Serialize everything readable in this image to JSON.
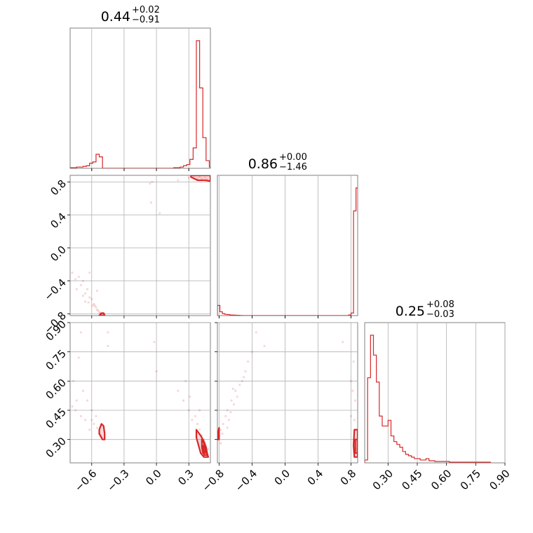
{
  "chart_data": {
    "type": "corner",
    "color": "#d62728",
    "grid": true,
    "parameters": [
      {
        "range": [
          -0.8,
          0.5
        ],
        "ticks": [
          -0.6,
          -0.3,
          0.0,
          0.3
        ],
        "tick_labels": [
          "−0.6",
          "−0.3",
          "0.0",
          "0.3"
        ]
      },
      {
        "range": [
          -0.82,
          0.88
        ],
        "ticks": [
          -0.8,
          -0.4,
          0.0,
          0.4,
          0.8
        ],
        "tick_labels": [
          "−0.8",
          "−0.4",
          "0.0",
          "0.4",
          "0.8"
        ]
      },
      {
        "range": [
          0.18,
          0.9
        ],
        "ticks": [
          0.3,
          0.45,
          0.6,
          0.75,
          0.9
        ],
        "tick_labels": [
          "0.30",
          "0.45",
          "0.60",
          "0.75",
          "0.90"
        ]
      }
    ],
    "titles": [
      {
        "median": "0.44",
        "plus": "+0.02",
        "minus": "−0.91"
      },
      {
        "median": "0.86",
        "plus": "+0.00",
        "minus": "−1.46"
      },
      {
        "median": "0.25",
        "plus": "+0.08",
        "minus": "−0.03"
      }
    ],
    "histograms": [
      {
        "x": [
          -0.8,
          -0.77,
          -0.74,
          -0.71,
          -0.68,
          -0.65,
          -0.62,
          -0.59,
          -0.56,
          -0.53,
          -0.5,
          -0.47,
          -0.44,
          -0.41,
          -0.38,
          -0.35,
          -0.32,
          -0.29,
          -0.26,
          -0.23,
          -0.2,
          -0.17,
          -0.14,
          -0.11,
          -0.08,
          -0.05,
          -0.02,
          0.01,
          0.04,
          0.07,
          0.1,
          0.13,
          0.16,
          0.19,
          0.22,
          0.25,
          0.28,
          0.31,
          0.34,
          0.37,
          0.4,
          0.43,
          0.46,
          0.49
        ],
        "values": [
          0.005,
          0.005,
          0.01,
          0.01,
          0.015,
          0.02,
          0.04,
          0.05,
          0.11,
          0.09,
          0,
          0,
          0,
          0,
          0,
          0,
          0,
          0,
          0,
          0,
          0,
          0,
          0,
          0,
          0,
          0,
          0,
          0,
          0,
          0,
          0,
          0,
          0.005,
          0.005,
          0.01,
          0.02,
          0.03,
          0.07,
          0.16,
          1.0,
          0.63,
          0.24,
          0.06,
          0.01
        ]
      },
      {
        "x": [
          -0.82,
          -0.79,
          -0.76,
          -0.73,
          -0.7,
          -0.67,
          -0.64,
          -0.61,
          -0.58,
          -0.55,
          -0.52,
          -0.49,
          -0.46,
          -0.43,
          -0.4,
          -0.37,
          -0.34,
          -0.31,
          -0.28,
          -0.25,
          -0.22,
          -0.19,
          -0.16,
          -0.13,
          -0.1,
          -0.07,
          -0.04,
          -0.01,
          0.02,
          0.05,
          0.08,
          0.11,
          0.14,
          0.17,
          0.2,
          0.23,
          0.26,
          0.29,
          0.32,
          0.35,
          0.38,
          0.41,
          0.44,
          0.47,
          0.5,
          0.53,
          0.56,
          0.59,
          0.62,
          0.65,
          0.68,
          0.71,
          0.74,
          0.77,
          0.8,
          0.83,
          0.86
        ],
        "values": [
          0.08,
          0.03,
          0.015,
          0.01,
          0.008,
          0.005,
          0.004,
          0.003,
          0.002,
          0.001,
          0,
          0,
          0,
          0,
          0,
          0,
          0,
          0,
          0,
          0,
          0,
          0,
          0,
          0,
          0,
          0,
          0,
          0,
          0,
          0,
          0,
          0,
          0,
          0,
          0,
          0,
          0,
          0,
          0,
          0,
          0,
          0,
          0,
          0,
          0,
          0,
          0,
          0,
          0,
          0,
          0,
          0,
          0,
          0.005,
          0.02,
          0.82,
          1.0
        ]
      },
      {
        "x": [
          0.18,
          0.195,
          0.21,
          0.225,
          0.24,
          0.255,
          0.27,
          0.285,
          0.3,
          0.315,
          0.33,
          0.345,
          0.36,
          0.375,
          0.39,
          0.405,
          0.42,
          0.435,
          0.45,
          0.465,
          0.48,
          0.495,
          0.51,
          0.525,
          0.54,
          0.555,
          0.57,
          0.585,
          0.6,
          0.615,
          0.63,
          0.645,
          0.66,
          0.675,
          0.69,
          0.705,
          0.72,
          0.735,
          0.75,
          0.765,
          0.78,
          0.795,
          0.81
        ],
        "values": [
          0.02,
          0.6,
          0.9,
          0.76,
          0.57,
          0.33,
          0.26,
          0.26,
          0.3,
          0.19,
          0.15,
          0.13,
          0.11,
          0.08,
          0.06,
          0.05,
          0.04,
          0.03,
          0.03,
          0.02,
          0.02,
          0.03,
          0.015,
          0.015,
          0.01,
          0.01,
          0.01,
          0.01,
          0.01,
          0.005,
          0.005,
          0.005,
          0.005,
          0.005,
          0.005,
          0.005,
          0.005,
          0.005,
          0.005,
          0.005,
          0.005,
          0.005,
          0.005
        ]
      }
    ],
    "scatter": {
      "p0_p1": [
        [
          -0.78,
          -0.3
        ],
        [
          -0.75,
          -0.38
        ],
        [
          -0.72,
          -0.35
        ],
        [
          -0.7,
          -0.45
        ],
        [
          -0.68,
          -0.4
        ],
        [
          -0.66,
          -0.55
        ],
        [
          -0.64,
          -0.5
        ],
        [
          -0.62,
          -0.6
        ],
        [
          -0.6,
          -0.62
        ],
        [
          -0.58,
          -0.68
        ],
        [
          -0.57,
          -0.7
        ],
        [
          -0.56,
          -0.72
        ],
        [
          -0.55,
          -0.75
        ],
        [
          -0.54,
          -0.76
        ],
        [
          -0.53,
          -0.78
        ],
        [
          -0.52,
          -0.79
        ],
        [
          -0.51,
          -0.8
        ],
        [
          -0.5,
          -0.81
        ],
        [
          -0.48,
          -0.8
        ],
        [
          -0.62,
          -0.3
        ],
        [
          -0.55,
          -0.52
        ],
        [
          -0.06,
          0.78
        ],
        [
          -0.04,
          0.8
        ],
        [
          0.03,
          0.42
        ],
        [
          -0.05,
          0.55
        ],
        [
          0.2,
          0.82
        ],
        [
          0.3,
          0.85
        ],
        [
          0.35,
          0.87
        ],
        [
          0.4,
          0.86
        ],
        [
          0.42,
          0.84
        ],
        [
          0.45,
          0.85
        ],
        [
          0.47,
          0.83
        ],
        [
          0.38,
          0.84
        ],
        [
          -0.68,
          -0.58
        ],
        [
          -0.66,
          -0.65
        ],
        [
          -0.63,
          -0.66
        ],
        [
          -0.59,
          -0.7
        ],
        [
          -0.74,
          -0.5
        ]
      ],
      "p0_p2": [
        [
          -0.78,
          0.47
        ],
        [
          -0.77,
          0.6
        ],
        [
          -0.75,
          0.45
        ],
        [
          -0.74,
          0.5
        ],
        [
          -0.72,
          0.72
        ],
        [
          -0.7,
          0.42
        ],
        [
          -0.68,
          0.55
        ],
        [
          -0.66,
          0.4
        ],
        [
          -0.64,
          0.5
        ],
        [
          -0.62,
          0.35
        ],
        [
          -0.6,
          0.45
        ],
        [
          -0.58,
          0.38
        ],
        [
          -0.56,
          0.42
        ],
        [
          -0.55,
          0.36
        ],
        [
          -0.53,
          0.33
        ],
        [
          -0.52,
          0.32
        ],
        [
          -0.51,
          0.31
        ],
        [
          -0.45,
          0.85
        ],
        [
          -0.45,
          0.78
        ],
        [
          -0.02,
          0.8
        ],
        [
          0.0,
          0.65
        ],
        [
          0.2,
          0.55
        ],
        [
          0.25,
          0.5
        ],
        [
          0.3,
          0.45
        ],
        [
          0.33,
          0.4
        ],
        [
          0.36,
          0.42
        ],
        [
          0.38,
          0.38
        ],
        [
          0.4,
          0.35
        ],
        [
          0.42,
          0.32
        ],
        [
          0.44,
          0.3
        ],
        [
          0.45,
          0.28
        ],
        [
          0.46,
          0.26
        ],
        [
          0.48,
          0.25
        ],
        [
          0.27,
          0.6
        ],
        [
          0.31,
          0.52
        ],
        [
          -0.7,
          0.85
        ],
        [
          -0.6,
          0.4
        ],
        [
          0.4,
          0.45
        ]
      ],
      "p1_p2": [
        [
          -0.82,
          0.3
        ],
        [
          -0.8,
          0.32
        ],
        [
          -0.78,
          0.35
        ],
        [
          -0.75,
          0.38
        ],
        [
          -0.72,
          0.42
        ],
        [
          -0.7,
          0.45
        ],
        [
          -0.68,
          0.4
        ],
        [
          -0.65,
          0.5
        ],
        [
          -0.62,
          0.48
        ],
        [
          -0.6,
          0.55
        ],
        [
          -0.58,
          0.52
        ],
        [
          -0.55,
          0.58
        ],
        [
          -0.52,
          0.6
        ],
        [
          -0.5,
          0.62
        ],
        [
          -0.48,
          0.65
        ],
        [
          -0.45,
          0.7
        ],
        [
          -0.4,
          0.75
        ],
        [
          -0.35,
          0.85
        ],
        [
          -0.25,
          0.78
        ],
        [
          -0.78,
          0.28
        ],
        [
          -0.7,
          0.36
        ],
        [
          -0.66,
          0.44
        ],
        [
          0.7,
          0.8
        ],
        [
          0.8,
          0.6
        ],
        [
          0.82,
          0.55
        ],
        [
          0.83,
          0.7
        ],
        [
          0.84,
          0.4
        ],
        [
          0.85,
          0.3
        ],
        [
          0.86,
          0.25
        ],
        [
          0.87,
          0.35
        ],
        [
          0.85,
          0.5
        ],
        [
          0.8,
          0.42
        ],
        [
          -0.76,
          0.33
        ],
        [
          -0.63,
          0.56
        ]
      ]
    },
    "contours": {
      "p0_p1": [
        {
          "level": "outer",
          "points": [
            [
              0.32,
              0.86
            ],
            [
              0.38,
              0.82
            ],
            [
              0.45,
              0.82
            ],
            [
              0.5,
              0.81
            ],
            [
              0.5,
              0.88
            ],
            [
              0.32,
              0.88
            ]
          ]
        },
        {
          "level": "outer",
          "points": [
            [
              -0.53,
              -0.82
            ],
            [
              -0.51,
              -0.79
            ],
            [
              -0.49,
              -0.79
            ],
            [
              -0.48,
              -0.82
            ]
          ]
        }
      ],
      "p0_p2": [
        {
          "level": "outer",
          "points": [
            [
              -0.53,
              0.35
            ],
            [
              -0.51,
              0.38
            ],
            [
              -0.49,
              0.37
            ],
            [
              -0.48,
              0.33
            ],
            [
              -0.48,
              0.3
            ],
            [
              -0.5,
              0.3
            ],
            [
              -0.53,
              0.33
            ]
          ]
        },
        {
          "level": "outer",
          "points": [
            [
              0.37,
              0.35
            ],
            [
              0.41,
              0.32
            ],
            [
              0.44,
              0.29
            ],
            [
              0.46,
              0.26
            ],
            [
              0.47,
              0.23
            ],
            [
              0.48,
              0.21
            ],
            [
              0.44,
              0.21
            ],
            [
              0.41,
              0.23
            ],
            [
              0.39,
              0.27
            ],
            [
              0.37,
              0.31
            ]
          ]
        },
        {
          "level": "inner",
          "points": [
            [
              0.42,
              0.3
            ],
            [
              0.44,
              0.28
            ],
            [
              0.45,
              0.26
            ],
            [
              0.45,
              0.23
            ],
            [
              0.43,
              0.23
            ],
            [
              0.42,
              0.26
            ]
          ]
        },
        {
          "level": "inner",
          "points": [
            [
              0.43,
              0.27
            ],
            [
              0.46,
              0.24
            ],
            [
              0.47,
              0.22
            ],
            [
              0.44,
              0.22
            ]
          ]
        }
      ],
      "p1_p2": [
        {
          "level": "outer",
          "points": [
            [
              -0.82,
              0.3
            ],
            [
              -0.81,
              0.34
            ],
            [
              -0.8,
              0.36
            ],
            [
              -0.8,
              0.3
            ]
          ]
        },
        {
          "level": "outer",
          "points": [
            [
              0.84,
              0.35
            ],
            [
              0.88,
              0.35
            ],
            [
              0.88,
              0.21
            ],
            [
              0.84,
              0.21
            ],
            [
              0.83,
              0.27
            ]
          ]
        },
        {
          "level": "inner",
          "points": [
            [
              0.85,
              0.3
            ],
            [
              0.88,
              0.3
            ],
            [
              0.88,
              0.23
            ],
            [
              0.85,
              0.23
            ]
          ]
        }
      ]
    }
  }
}
